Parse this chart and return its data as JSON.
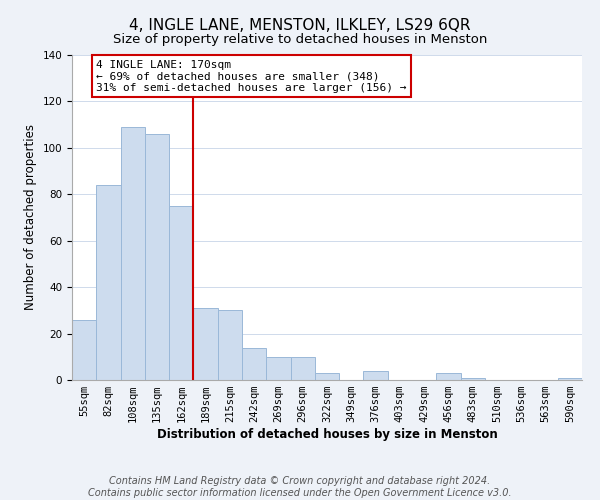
{
  "title": "4, INGLE LANE, MENSTON, ILKLEY, LS29 6QR",
  "subtitle": "Size of property relative to detached houses in Menston",
  "xlabel": "Distribution of detached houses by size in Menston",
  "ylabel": "Number of detached properties",
  "categories": [
    "55sqm",
    "82sqm",
    "108sqm",
    "135sqm",
    "162sqm",
    "189sqm",
    "215sqm",
    "242sqm",
    "269sqm",
    "296sqm",
    "322sqm",
    "349sqm",
    "376sqm",
    "403sqm",
    "429sqm",
    "456sqm",
    "483sqm",
    "510sqm",
    "536sqm",
    "563sqm",
    "590sqm"
  ],
  "values": [
    26,
    84,
    109,
    106,
    75,
    31,
    30,
    14,
    10,
    10,
    3,
    0,
    4,
    0,
    0,
    3,
    1,
    0,
    0,
    0,
    1
  ],
  "bar_color": "#cddcee",
  "bar_edge_color": "#9ab8d8",
  "vline_x": 4.5,
  "vline_color": "#cc0000",
  "annotation_title": "4 INGLE LANE: 170sqm",
  "annotation_line1": "← 69% of detached houses are smaller (348)",
  "annotation_line2": "31% of semi-detached houses are larger (156) →",
  "annotation_box_color": "#ffffff",
  "annotation_box_edge": "#cc0000",
  "ylim": [
    0,
    140
  ],
  "yticks": [
    0,
    20,
    40,
    60,
    80,
    100,
    120,
    140
  ],
  "footer_line1": "Contains HM Land Registry data © Crown copyright and database right 2024.",
  "footer_line2": "Contains public sector information licensed under the Open Government Licence v3.0.",
  "background_color": "#eef2f8",
  "plot_background": "#ffffff",
  "title_fontsize": 11,
  "subtitle_fontsize": 9.5,
  "axis_label_fontsize": 8.5,
  "tick_fontsize": 7.5,
  "footer_fontsize": 7,
  "annotation_fontsize": 8
}
